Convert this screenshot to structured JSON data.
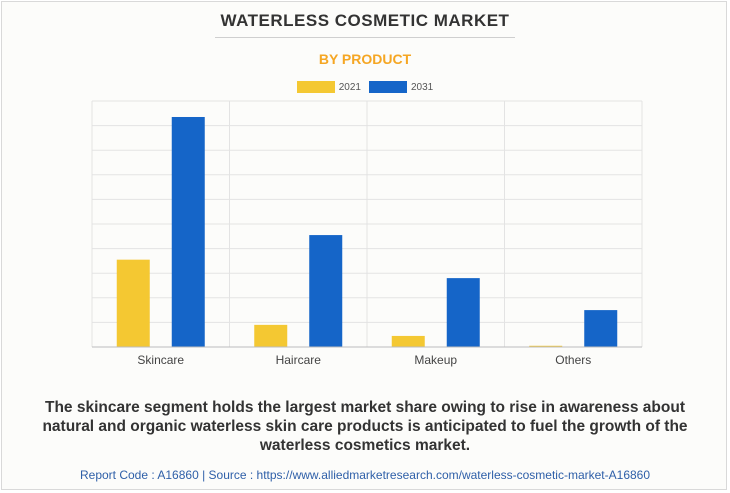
{
  "header": {
    "title": "WATERLESS COSMETIC MARKET",
    "subtitle": "BY PRODUCT"
  },
  "colors": {
    "accent": "#f5a623",
    "series_2021": "#f4c832",
    "series_2031": "#1565c8",
    "grid": "#e3e3e3",
    "axis": "#bdbdbd",
    "footer_text": "#2e5fa8"
  },
  "chart_data": {
    "type": "bar",
    "categories": [
      "Skincare",
      "Haircare",
      "Makeup",
      "Others"
    ],
    "series": [
      {
        "name": "2021",
        "values": [
          3.55,
          0.9,
          0.45,
          0.05
        ]
      },
      {
        "name": "2031",
        "values": [
          9.35,
          4.55,
          2.8,
          1.5
        ]
      }
    ],
    "ylim": [
      0,
      10
    ],
    "grid": true,
    "legend": "top-center"
  },
  "caption": "The skincare segment holds the largest market share owing to rise in awareness about natural and organic waterless skin care products is anticipated to fuel the growth of the waterless cosmetics market.",
  "footer": {
    "text": "Report Code : A16860  |  Source : https://www.alliedmarketresearch.com/waterless-cosmetic-market-A16860"
  }
}
